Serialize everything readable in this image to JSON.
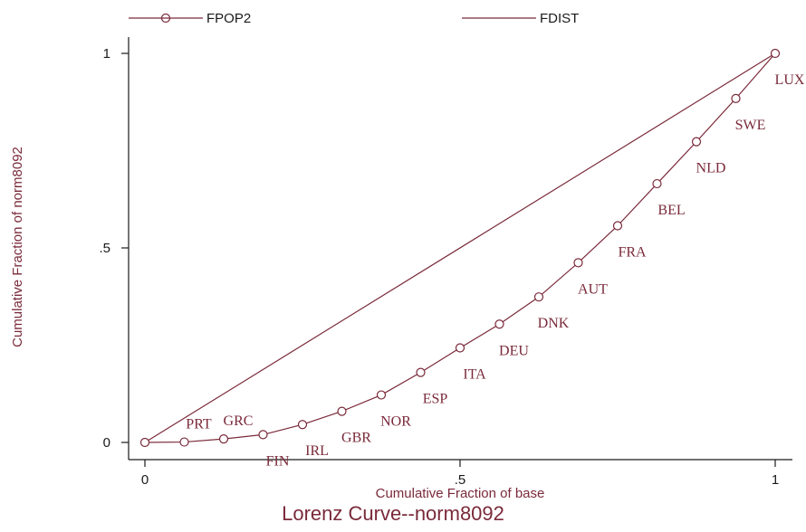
{
  "chart_data": {
    "type": "line",
    "title": "Lorenz Curve--norm8092",
    "xlabel": "Cumulative Fraction of base",
    "ylabel": "Cumulative Fraction of norm8092",
    "xlim": [
      0,
      1
    ],
    "ylim": [
      0,
      1
    ],
    "xticks": [
      {
        "value": 0,
        "label": "0"
      },
      {
        "value": 0.5,
        "label": ".5"
      },
      {
        "value": 1,
        "label": "1"
      }
    ],
    "yticks": [
      {
        "value": 0,
        "label": "0"
      },
      {
        "value": 0.5,
        "label": ".5"
      },
      {
        "value": 1,
        "label": "1"
      }
    ],
    "grid": false,
    "legend_position": "top",
    "line_color": "#7a2a3a",
    "series": [
      {
        "name": "FPOP2",
        "marker": "hollow-circle",
        "x": [
          0,
          0.0625,
          0.125,
          0.1875,
          0.25,
          0.3125,
          0.375,
          0.4375,
          0.5,
          0.5625,
          0.625,
          0.6875,
          0.75,
          0.8125,
          0.875,
          0.9375,
          1
        ],
        "y": [
          0,
          0.001,
          0.009,
          0.02,
          0.046,
          0.08,
          0.122,
          0.18,
          0.243,
          0.304,
          0.374,
          0.462,
          0.557,
          0.665,
          0.773,
          0.884,
          1
        ],
        "point_labels": [
          "",
          "PRT",
          "GRC",
          "FIN",
          "IRL",
          "GBR",
          "NOR",
          "ESP",
          "ITA",
          "DEU",
          "DNK",
          "AUT",
          "FRA",
          "BEL",
          "NLD",
          "SWE",
          "LUX"
        ]
      },
      {
        "name": "FDIST",
        "marker": "none",
        "x": [
          0,
          1
        ],
        "y": [
          0,
          1
        ]
      }
    ]
  }
}
